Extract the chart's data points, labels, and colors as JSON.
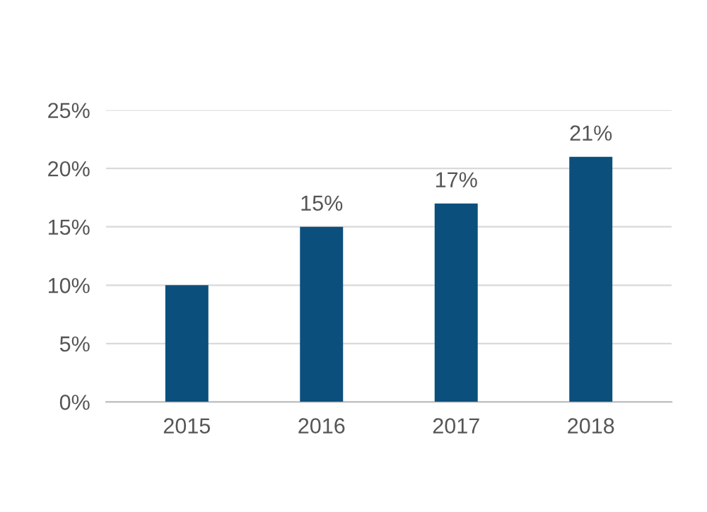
{
  "chart_data": {
    "type": "bar",
    "categories": [
      "2015",
      "2016",
      "2017",
      "2018"
    ],
    "values": [
      10,
      15,
      17,
      21
    ],
    "color": "#0b4f7d",
    "value_labels": [
      null,
      "15%",
      "17%",
      "21%"
    ],
    "ylim": [
      0,
      25
    ],
    "yticks": [
      {
        "value": 0,
        "label": "0%"
      },
      {
        "value": 5,
        "label": "5%"
      },
      {
        "value": 10,
        "label": "10%"
      },
      {
        "value": 15,
        "label": "15%"
      },
      {
        "value": 20,
        "label": "20%"
      },
      {
        "value": 25,
        "label": "25%"
      }
    ],
    "grid": "y"
  }
}
